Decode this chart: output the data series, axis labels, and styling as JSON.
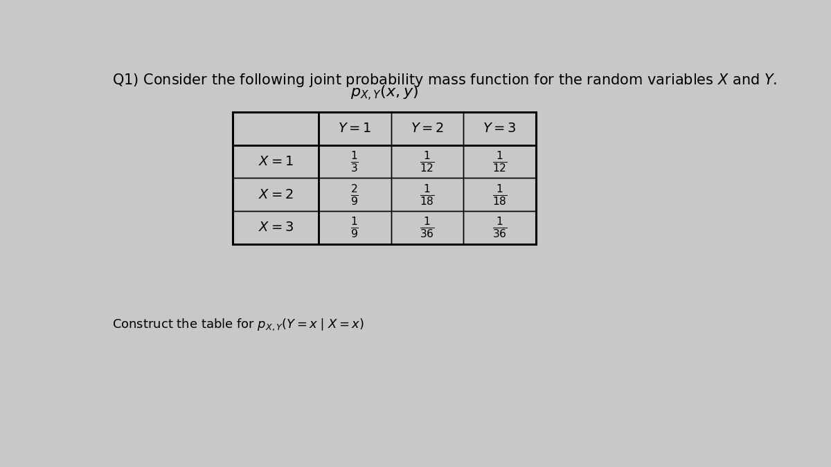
{
  "background_color": "#c8c8c8",
  "title_text": "Q1) Consider the following joint probability mass function for the random variables $X$ and $Y$.",
  "table_title": "$p_{X,Y}(x, y)$",
  "col_headers": [
    "$Y = 1$",
    "$Y = 2$",
    "$Y = 3$"
  ],
  "row_headers": [
    "$X = 1$",
    "$X = 2$",
    "$X = 3$"
  ],
  "cell_values": [
    [
      "$\\frac{1}{3}$",
      "$\\frac{1}{12}$",
      "$\\frac{1}{12}$"
    ],
    [
      "$\\frac{2}{9}$",
      "$\\frac{1}{18}$",
      "$\\frac{1}{18}$"
    ],
    [
      "$\\frac{1}{9}$",
      "$\\frac{1}{36}$",
      "$\\frac{1}{36}$"
    ]
  ],
  "bottom_text": "Construct the table for $p_{X,Y}(Y = x \\mid X = x)$",
  "font_size_title": 15,
  "font_size_table": 14,
  "font_size_bottom": 13
}
